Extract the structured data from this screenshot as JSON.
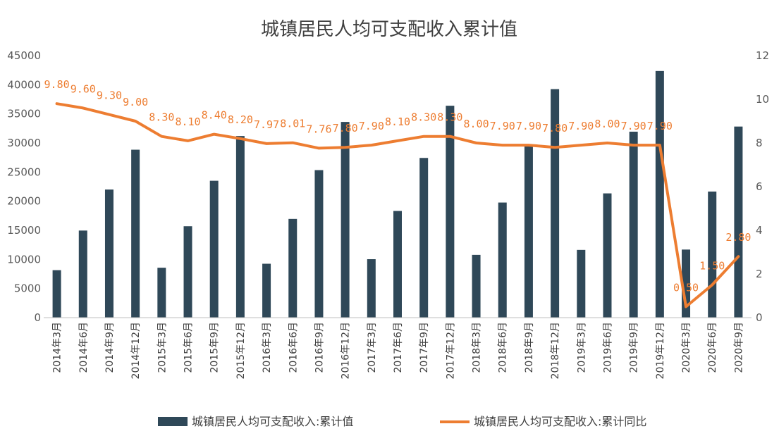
{
  "chart_data": {
    "type": "bar+line",
    "title": "城镇居民人均可支配收入累计值",
    "categories": [
      "2014年3月",
      "2014年6月",
      "2014年9月",
      "2014年12月",
      "2015年3月",
      "2015年6月",
      "2015年9月",
      "2015年12月",
      "2016年3月",
      "2016年6月",
      "2016年9月",
      "2016年12月",
      "2017年3月",
      "2017年6月",
      "2017年9月",
      "2017年12月",
      "2018年3月",
      "2018年6月",
      "2018年9月",
      "2018年12月",
      "2019年3月",
      "2019年6月",
      "2019年9月",
      "2019年12月",
      "2020年3月",
      "2020年6月",
      "2020年9月"
    ],
    "series": [
      {
        "name": "城镇居民人均可支配收入:累计值",
        "type": "bar",
        "axis": "left",
        "color": "#2F4858",
        "values": [
          8155,
          14957,
          22000,
          28844,
          8572,
          15699,
          23512,
          31195,
          9255,
          16957,
          25337,
          33616,
          10038,
          18322,
          27430,
          36396,
          10781,
          19770,
          29599,
          39251,
          11633,
          21342,
          31939,
          42359,
          11691,
          21655,
          32821
        ]
      },
      {
        "name": "城镇居民人均可支配收入:累计同比",
        "type": "line",
        "axis": "right",
        "color": "#ED7D31",
        "values": [
          9.8,
          9.6,
          9.3,
          9.0,
          8.3,
          8.1,
          8.4,
          8.2,
          7.97,
          8.01,
          7.76,
          7.8,
          7.9,
          8.1,
          8.3,
          8.3,
          8.0,
          7.9,
          7.9,
          7.8,
          7.9,
          8.0,
          7.9,
          7.9,
          0.5,
          1.5,
          2.8
        ],
        "labels": [
          "9.80",
          "9.60",
          "9.30",
          "9.00",
          "8.30",
          "8.10",
          "8.40",
          "8.20",
          "7.97",
          "8.01",
          "7.76",
          "7.80",
          "7.90",
          "8.10",
          "8.30",
          "8.30",
          "8.00",
          "7.90",
          "7.90",
          "7.80",
          "7.90",
          "8.00",
          "7.90",
          "7.90",
          "0.50",
          "1.50",
          "2.80"
        ]
      }
    ],
    "yleft": {
      "min": 0,
      "max": 45000,
      "step": 5000,
      "ticks": [
        "0",
        "5000",
        "10000",
        "15000",
        "20000",
        "25000",
        "30000",
        "35000",
        "40000",
        "45000"
      ]
    },
    "yright": {
      "min": 0,
      "max": 12,
      "step": 2,
      "ticks": [
        "0",
        "2",
        "4",
        "6",
        "8",
        "10",
        "12"
      ]
    },
    "grid": false,
    "legend": "bottom"
  }
}
